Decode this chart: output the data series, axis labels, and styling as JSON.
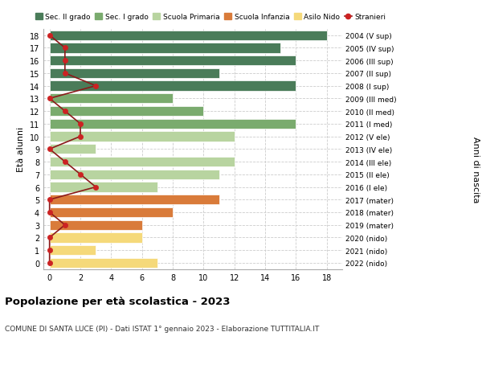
{
  "ages": [
    18,
    17,
    16,
    15,
    14,
    13,
    12,
    11,
    10,
    9,
    8,
    7,
    6,
    5,
    4,
    3,
    2,
    1,
    0
  ],
  "bar_values": [
    18,
    15,
    16,
    11,
    16,
    8,
    10,
    16,
    12,
    3,
    12,
    11,
    7,
    11,
    8,
    6,
    6,
    3,
    7
  ],
  "bar_colors": [
    "#4a7c59",
    "#4a7c59",
    "#4a7c59",
    "#4a7c59",
    "#4a7c59",
    "#7aab6e",
    "#7aab6e",
    "#7aab6e",
    "#b8d4a0",
    "#b8d4a0",
    "#b8d4a0",
    "#b8d4a0",
    "#b8d4a0",
    "#d97b3a",
    "#d97b3a",
    "#d97b3a",
    "#f5d97a",
    "#f5d97a",
    "#f5d97a"
  ],
  "stranieri_values": [
    0,
    1,
    1,
    1,
    3,
    0,
    1,
    2,
    2,
    0,
    1,
    2,
    3,
    0,
    0,
    1,
    0,
    0,
    0
  ],
  "right_labels": [
    "2004 (V sup)",
    "2005 (IV sup)",
    "2006 (III sup)",
    "2007 (II sup)",
    "2008 (I sup)",
    "2009 (III med)",
    "2010 (II med)",
    "2011 (I med)",
    "2012 (V ele)",
    "2013 (IV ele)",
    "2014 (III ele)",
    "2015 (II ele)",
    "2016 (I ele)",
    "2017 (mater)",
    "2018 (mater)",
    "2019 (mater)",
    "2020 (nido)",
    "2021 (nido)",
    "2022 (nido)"
  ],
  "legend_labels": [
    "Sec. II grado",
    "Sec. I grado",
    "Scuola Primaria",
    "Scuola Infanzia",
    "Asilo Nido",
    "Stranieri"
  ],
  "legend_colors": [
    "#4a7c59",
    "#7aab6e",
    "#b8d4a0",
    "#d97b3a",
    "#f5d97a",
    "#b22222"
  ],
  "ylabel_left": "Età alunni",
  "ylabel_right": "Anni di nascita",
  "title": "Popolazione per età scolastica - 2023",
  "subtitle": "COMUNE DI SANTA LUCE (PI) - Dati ISTAT 1° gennaio 2023 - Elaborazione TUTTITALIA.IT",
  "stranieri_line_color": "#8b1a1a",
  "stranieri_dot_color": "#cc2222",
  "bar_height": 0.78,
  "background_color": "#ffffff",
  "grid_color": "#cccccc"
}
